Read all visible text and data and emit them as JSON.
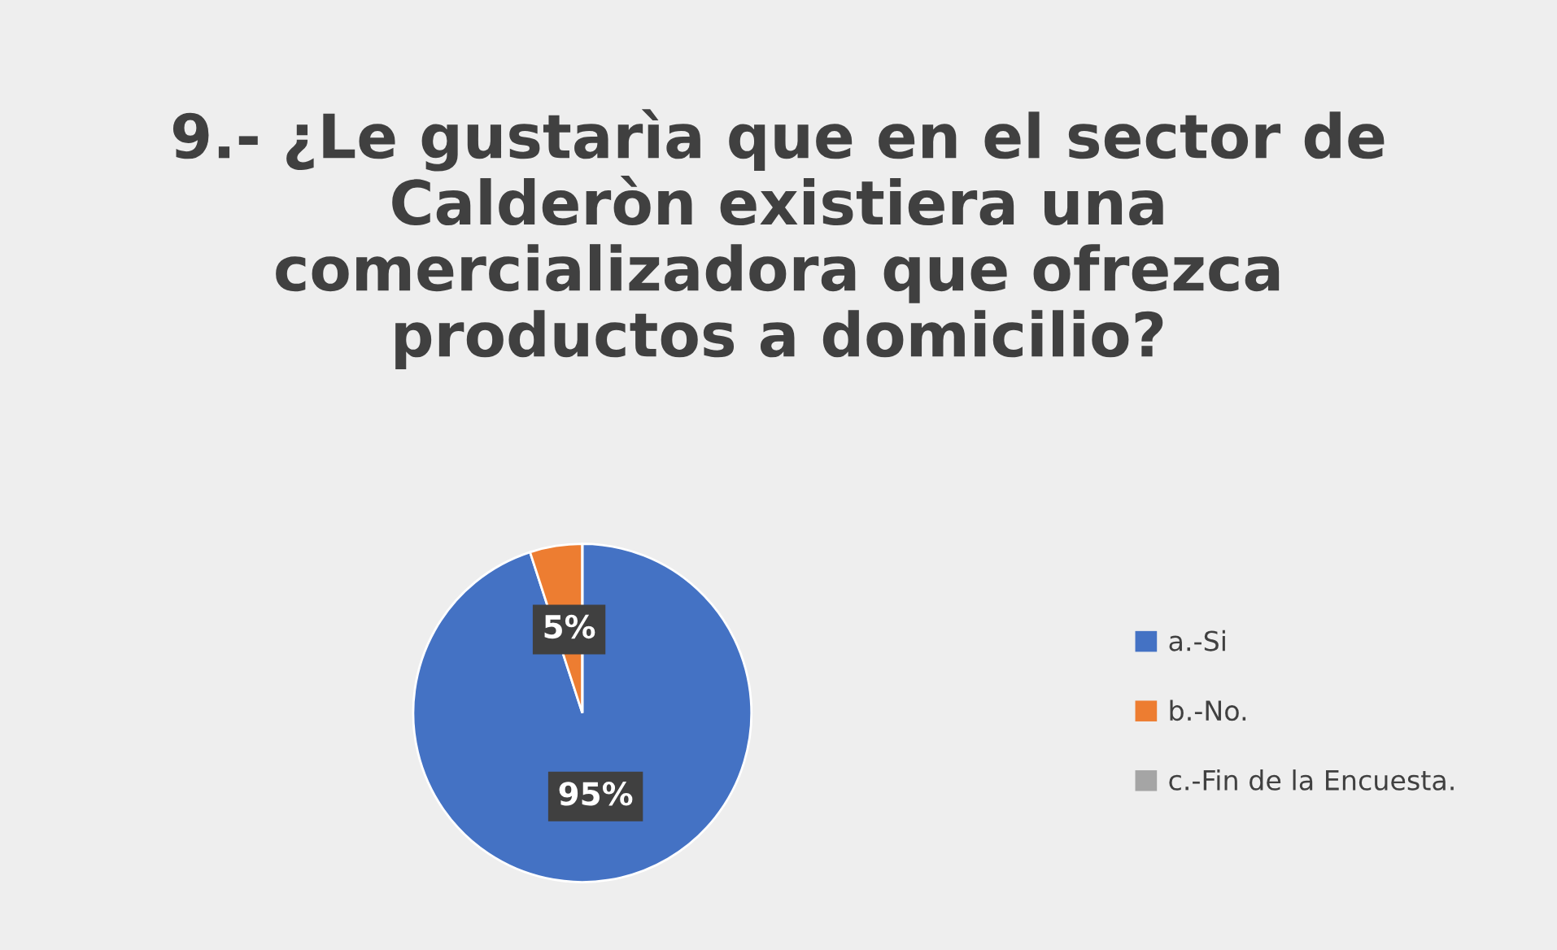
{
  "chart_data": {
    "type": "pie",
    "title": "9.- ¿Le gustarìa que en el sector de\nCalderòn existiera una\ncomercializadora que ofrezca\nproductos a domicilio?",
    "categories": [
      "a.-Si",
      "b.-No.",
      "c.-Fin de la Encuesta."
    ],
    "values": [
      95,
      5,
      0
    ],
    "colors": [
      "#4472c4",
      "#ed7d31",
      "#a5a5a5"
    ],
    "value_labels": [
      "95%",
      "5%",
      null
    ],
    "legend": "right"
  }
}
